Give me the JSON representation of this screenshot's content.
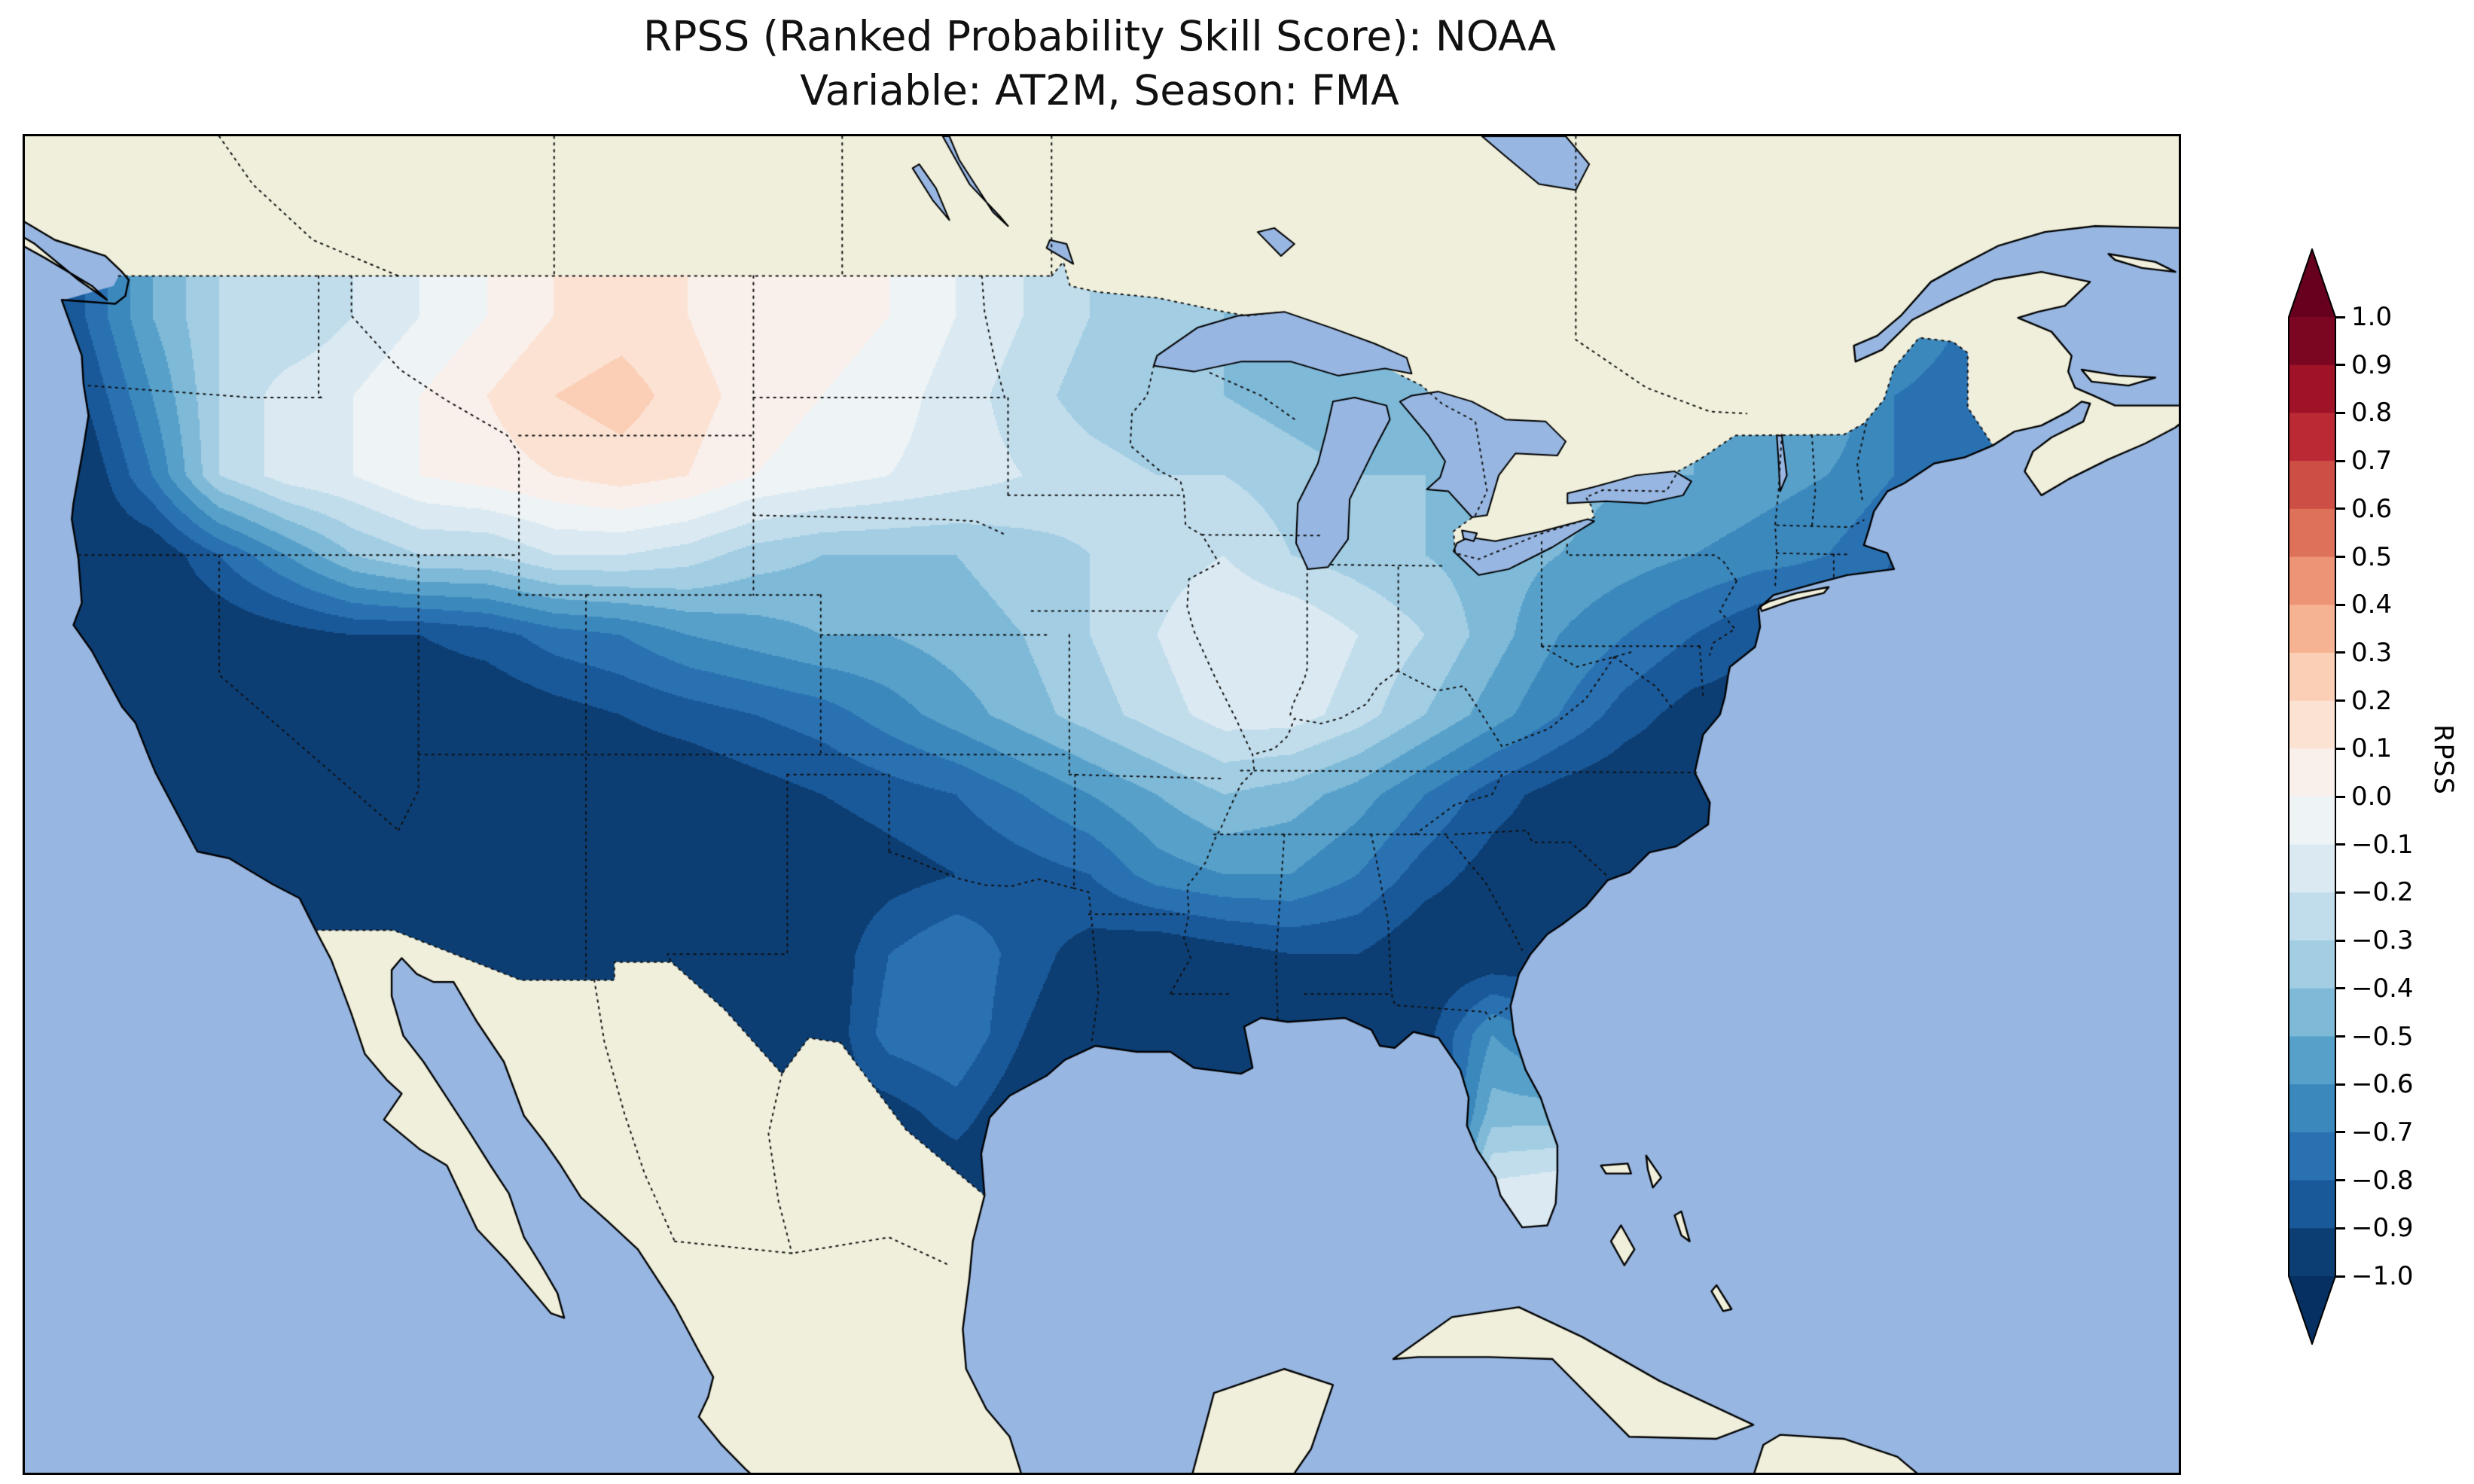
{
  "chart_data": {
    "type": "heatmap",
    "title": "RPSS (Ranked Probability Skill Score): NOAA",
    "subtitle": "Variable: AT2M, Season: FMA",
    "source": "NOAA",
    "variable": "AT2M",
    "season": "FMA",
    "metric": "RPSS",
    "colorbar": {
      "label": "RPSS",
      "min": -1.0,
      "max": 1.0,
      "step": 0.1,
      "extend": "both",
      "ticks": [
        "1.0",
        "0.9",
        "0.8",
        "0.7",
        "0.6",
        "0.5",
        "0.4",
        "0.3",
        "0.2",
        "0.1",
        "0.0",
        "−0.1",
        "−0.2",
        "−0.3",
        "−0.4",
        "−0.5",
        "−0.6",
        "−0.7",
        "−0.8",
        "−0.9",
        "−1.0"
      ],
      "colormap_stops": [
        "#053061",
        "#2166ac",
        "#4393c3",
        "#92c5de",
        "#d1e5f0",
        "#f7f7f7",
        "#fddbc7",
        "#f4a582",
        "#d6604d",
        "#b2182b",
        "#67001f"
      ]
    },
    "map": {
      "projection": "plate-carree (approx.)",
      "extent": {
        "lon": [
          -125.8,
          -61.5
        ],
        "lat": [
          19.0,
          52.5
        ]
      },
      "colors": {
        "ocean": "#97b6e1",
        "land": "#efefdb",
        "lake": "#97b6e1",
        "coast": "#000000",
        "border": "#111111"
      }
    },
    "grid": {
      "cell_size_deg": 2,
      "lons": [
        -124,
        -122,
        -120,
        -118,
        -116,
        -114,
        -112,
        -110,
        -108,
        -106,
        -104,
        -102,
        -100,
        -98,
        -96,
        -94,
        -92,
        -90,
        -88,
        -86,
        -84,
        -82,
        -80,
        -78,
        -76,
        -74,
        -72,
        -70,
        -68
      ],
      "lats": [
        48,
        46,
        44,
        42,
        40,
        38,
        36,
        34,
        32,
        30,
        28,
        26
      ],
      "values": [
        [
          -0.8,
          -0.5,
          -0.3,
          -0.3,
          -0.2,
          -0.1,
          0,
          0.1,
          0.15,
          0.1,
          0,
          0.05,
          0,
          -0.1,
          -0.2,
          -0.3,
          -0.35,
          -0.4,
          -0.45,
          -0.45,
          -0.5,
          null,
          null,
          null,
          null,
          null,
          -0.6,
          -0.6,
          -0.7
        ],
        [
          -0.9,
          -0.6,
          -0.3,
          -0.15,
          -0.1,
          0,
          0.1,
          0.2,
          0.25,
          0.15,
          0.05,
          0,
          -0.05,
          -0.15,
          -0.25,
          -0.35,
          -0.4,
          -0.4,
          -0.45,
          -0.5,
          -0.5,
          null,
          null,
          null,
          null,
          null,
          null,
          -0.7,
          -0.75
        ],
        [
          -1,
          -0.7,
          -0.3,
          -0.15,
          -0.1,
          0,
          0.05,
          0.1,
          0.15,
          0.1,
          0,
          -0.05,
          -0.1,
          -0.15,
          -0.2,
          -0.25,
          -0.3,
          -0.3,
          -0.35,
          -0.4,
          -0.4,
          -0.45,
          null,
          -0.5,
          -0.5,
          -0.55,
          -0.6,
          -0.7,
          -0.8
        ],
        [
          -1,
          -1,
          -0.8,
          -0.6,
          -0.4,
          -0.3,
          -0.3,
          -0.2,
          -0.2,
          -0.25,
          -0.35,
          -0.4,
          -0.4,
          -0.4,
          -0.35,
          -0.3,
          -0.25,
          -0.2,
          -0.3,
          -0.35,
          -0.4,
          -0.45,
          -0.5,
          -0.55,
          -0.6,
          -0.65,
          -0.7,
          -0.8,
          null
        ],
        [
          -1,
          -1,
          -1,
          -0.95,
          -0.9,
          -0.9,
          -0.85,
          -0.75,
          -0.7,
          -0.6,
          -0.55,
          -0.5,
          -0.5,
          -0.45,
          -0.4,
          -0.3,
          -0.2,
          -0.1,
          -0.1,
          -0.2,
          -0.3,
          -0.45,
          -0.6,
          -0.7,
          -0.8,
          -0.9,
          -0.85,
          null,
          null
        ],
        [
          null,
          -1,
          -1,
          -1,
          -1,
          -1,
          -1,
          -0.95,
          -0.9,
          -0.85,
          -0.8,
          -0.75,
          -0.65,
          -0.55,
          -0.45,
          -0.35,
          -0.25,
          -0.15,
          -0.15,
          -0.25,
          -0.4,
          -0.55,
          -0.7,
          -0.85,
          -0.95,
          null,
          null,
          null,
          null
        ],
        [
          null,
          -1,
          -1,
          -1,
          -1,
          -1,
          -1,
          -1,
          -1,
          -1,
          -0.95,
          -0.9,
          -0.85,
          -0.8,
          -0.7,
          -0.6,
          -0.5,
          -0.4,
          -0.45,
          -0.55,
          -0.7,
          -0.85,
          -0.95,
          -1,
          -1,
          null,
          null,
          null,
          null
        ],
        [
          null,
          null,
          null,
          -1,
          -1,
          -1,
          -1,
          -1,
          -1,
          -1,
          -1,
          -1,
          -0.95,
          -0.9,
          -0.85,
          -0.8,
          -0.65,
          -0.6,
          -0.6,
          -0.7,
          -0.85,
          -0.95,
          -1,
          null,
          null,
          null,
          null,
          null,
          null
        ],
        [
          null,
          null,
          null,
          null,
          null,
          -1,
          -1,
          -1,
          -1,
          -1,
          -1,
          -1,
          -0.8,
          -0.7,
          -0.85,
          -0.95,
          -1,
          -0.95,
          -0.9,
          -0.9,
          -1,
          -1,
          -1,
          null,
          null,
          null,
          null,
          null,
          null
        ],
        [
          null,
          null,
          null,
          null,
          null,
          null,
          null,
          null,
          null,
          null,
          -1,
          -1,
          -0.75,
          -0.7,
          -0.9,
          -1,
          -1,
          -1,
          -1,
          -1,
          -0.95,
          -0.6,
          -0.75,
          null,
          null,
          null,
          null,
          null,
          null
        ],
        [
          null,
          null,
          null,
          null,
          null,
          null,
          null,
          null,
          null,
          null,
          null,
          null,
          -0.95,
          -0.85,
          -1,
          null,
          null,
          null,
          null,
          null,
          null,
          -0.45,
          -0.45,
          null,
          null,
          null,
          null,
          null,
          null
        ],
        [
          null,
          null,
          null,
          null,
          null,
          null,
          null,
          null,
          null,
          null,
          null,
          null,
          null,
          -1,
          null,
          null,
          null,
          null,
          null,
          null,
          null,
          -0.15,
          -0.1,
          null,
          null,
          null,
          null,
          null,
          null
        ]
      ]
    }
  }
}
